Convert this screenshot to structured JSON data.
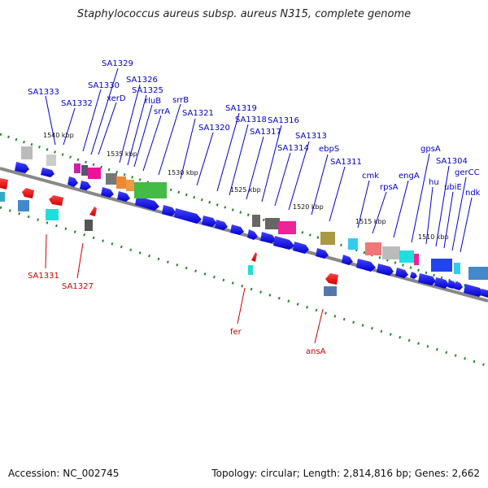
{
  "title": "Staphylococcus aureus subsp. aureus N315, complete genome",
  "accession": "Accession: NC_002745",
  "topology": "Topology: circular; Length: 2,814,816 bp; Genes: 2,662",
  "kbp_labels": [
    "1540 kbp",
    "1535 kbp",
    "1530 kbp",
    "1525 kbp",
    "1520 kbp",
    "1515 kbp",
    "1510 kbp"
  ],
  "top_labels": [
    "SA1333",
    "SA1332",
    "SA1330",
    "SA1329",
    "xerD",
    "SA1326",
    "SA1325",
    "rluB",
    "srrA",
    "srrB",
    "SA1321",
    "SA1320",
    "SA1319",
    "SA1318",
    "SA1317",
    "SA1316",
    "SA1314",
    "SA1313",
    "ebpS",
    "SA1311",
    "cmk",
    "rpsA",
    "engA",
    "gpsA",
    "hu",
    "SA1304",
    "ubiE",
    "gerCC",
    "ndk"
  ],
  "bottom_labels": [
    "SA1331",
    "SA1327",
    "fer",
    "ansA"
  ],
  "colors": {
    "gene_forward": "#0000ee",
    "gene_reverse": "#ee0000",
    "backbone": "#888888",
    "tick": "#228822",
    "label_top": "#0000cc",
    "label_bottom": "#cc0000"
  }
}
